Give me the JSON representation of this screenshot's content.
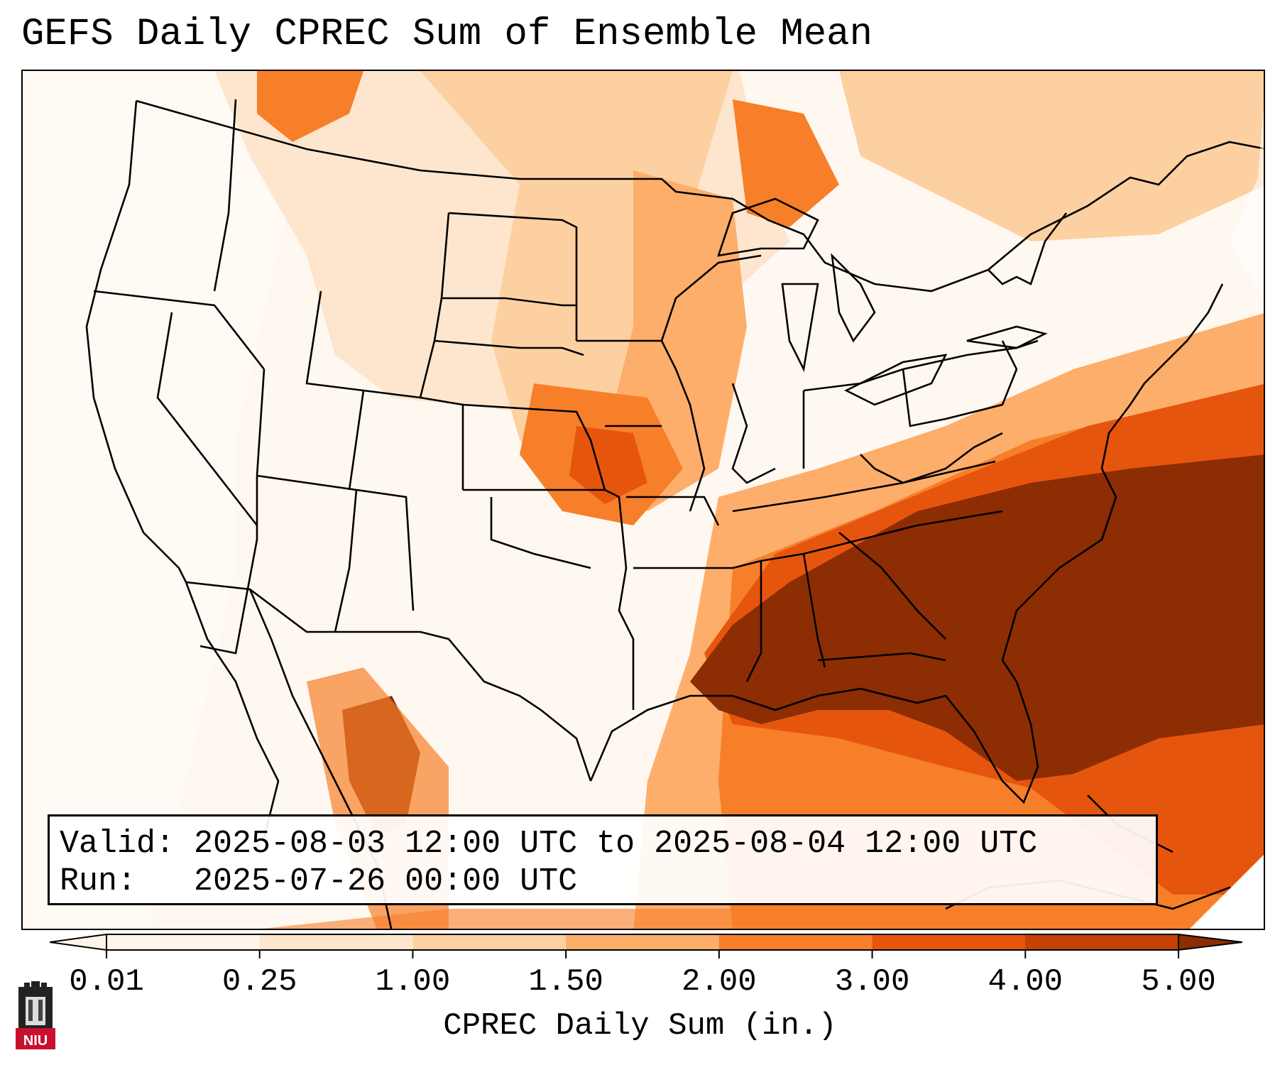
{
  "title": "GEFS Daily CPREC Sum of Ensemble Mean",
  "info": {
    "valid_line": "Valid: 2025-08-03 12:00 UTC to 2025-08-04 12:00 UTC",
    "run_line": "Run:   2025-07-26 00:00 UTC"
  },
  "colorbar": {
    "label": "CPREC Daily Sum (in.)",
    "ticks": [
      "0.01",
      "0.25",
      "1.00",
      "1.50",
      "2.00",
      "3.00",
      "4.00",
      "5.00"
    ],
    "colors": [
      "#fff5eb",
      "#fee6ce",
      "#fdd0a2",
      "#fdae6b",
      "#f77f2a",
      "#e6550d",
      "#c44103",
      "#8c2d04"
    ]
  },
  "logo": {
    "text": "NIU",
    "icon": "niu-logo-icon",
    "color": "#c8102e"
  },
  "map": {
    "region": "Continental United States",
    "heavy_precip_color": "#8c2d04",
    "land_light_color": "#fff7ee"
  }
}
